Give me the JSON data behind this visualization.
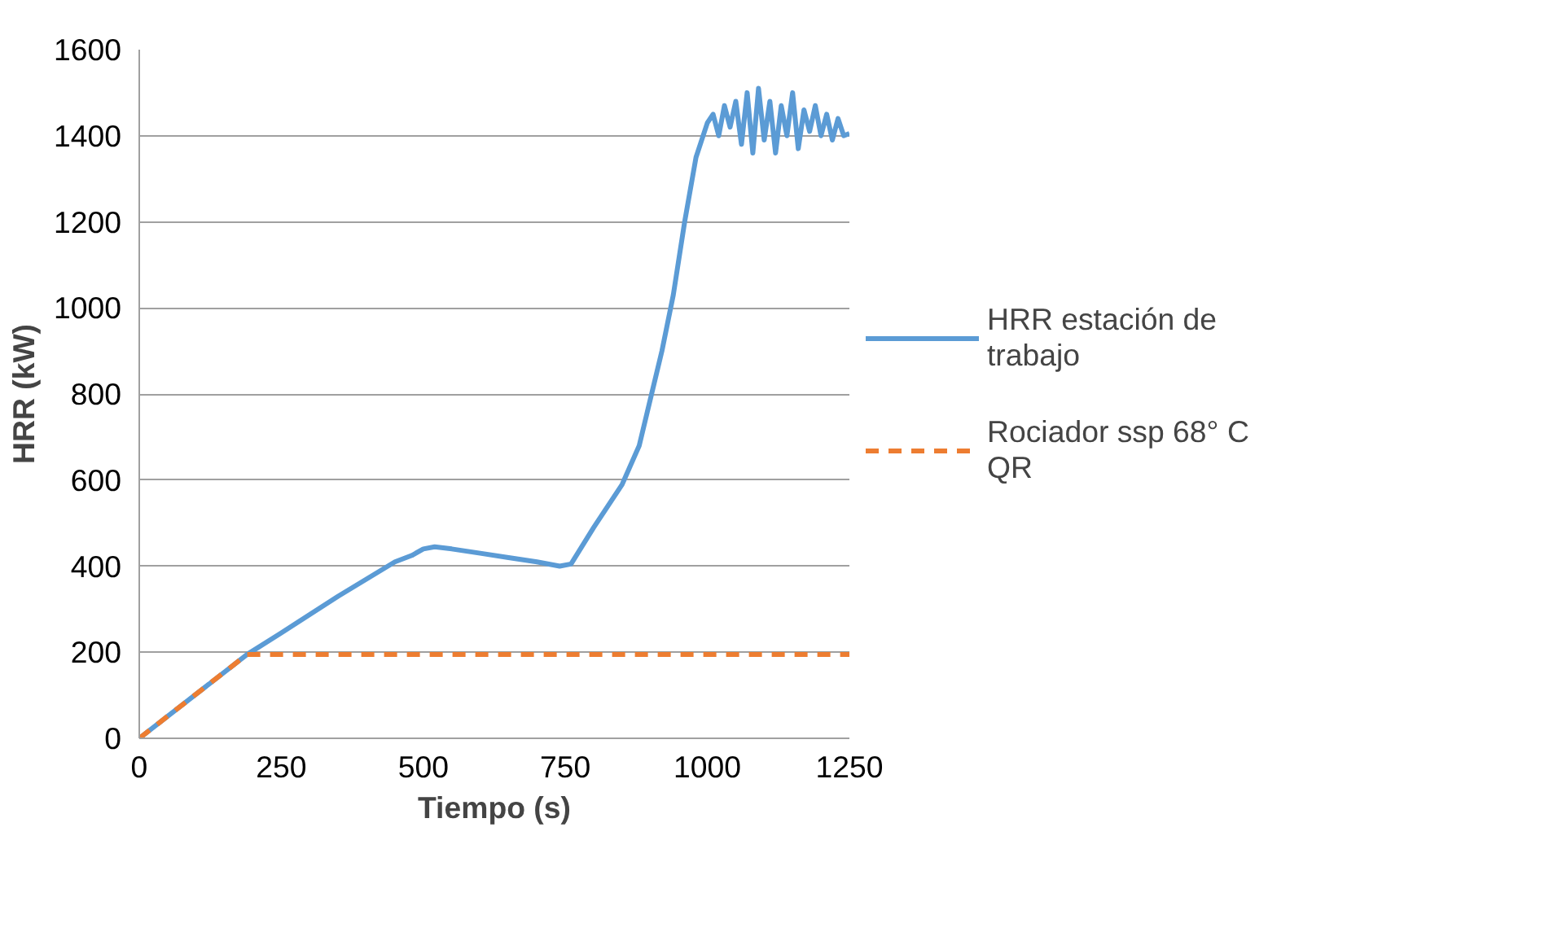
{
  "chart_data": {
    "type": "line",
    "xlabel": "Tiempo (s)",
    "ylabel": "HRR (kW)",
    "xlim": [
      0,
      1250
    ],
    "xticks": [
      0,
      250,
      500,
      750,
      1000,
      1250
    ],
    "ylim": [
      0,
      1600
    ],
    "yticks": [
      0,
      200,
      400,
      600,
      800,
      1000,
      1200,
      1400,
      1600
    ],
    "grid": "y",
    "legend": "right",
    "marker": "none",
    "series": [
      {
        "name": "HRR estación de trabajo",
        "color": "#5b9bd5",
        "line_style": "solid",
        "x": [
          0,
          190,
          250,
          350,
          450,
          480,
          500,
          520,
          550,
          600,
          650,
          700,
          740,
          760,
          800,
          850,
          880,
          900,
          920,
          940,
          960,
          980,
          1000,
          1010,
          1020,
          1030,
          1040,
          1050,
          1060,
          1070,
          1080,
          1090,
          1100,
          1110,
          1120,
          1130,
          1140,
          1150,
          1160,
          1170,
          1180,
          1190,
          1200,
          1210,
          1220,
          1230,
          1240,
          1250
        ],
        "values": [
          0,
          195,
          245,
          330,
          410,
          425,
          440,
          445,
          440,
          430,
          420,
          410,
          400,
          405,
          490,
          590,
          680,
          790,
          900,
          1030,
          1200,
          1350,
          1430,
          1450,
          1400,
          1470,
          1420,
          1480,
          1380,
          1500,
          1360,
          1510,
          1390,
          1480,
          1360,
          1470,
          1400,
          1500,
          1370,
          1460,
          1410,
          1470,
          1400,
          1450,
          1390,
          1440,
          1400,
          1405
        ]
      },
      {
        "name": "Rociador ssp 68° C QR",
        "color": "#ed7d31",
        "line_style": "dashed",
        "x": [
          0,
          190,
          1250
        ],
        "values": [
          0,
          195,
          195
        ]
      }
    ]
  }
}
